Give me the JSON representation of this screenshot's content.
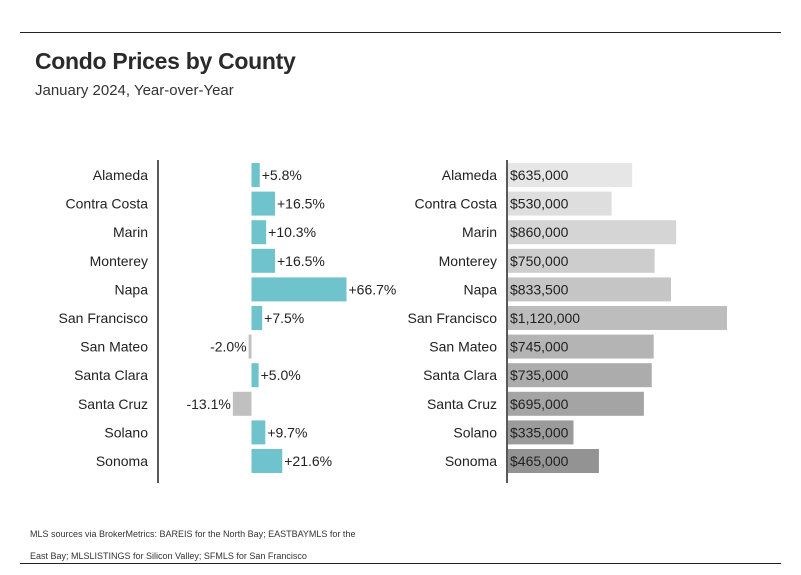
{
  "header": {
    "title": "Condo Prices by County",
    "subtitle": "January 2024, Year-over-Year"
  },
  "footnote": "MLS sources via BrokerMetrics: BAREIS for the North Bay; EASTBAYMLS for the East Bay; MLSLISTINGS for Silicon Valley; SFMLS for San Francisco",
  "colors": {
    "positive_change": "#6fc3cd",
    "negative_change": "#c0c0c0",
    "price_light": "#e6e6e6",
    "price_dark": "#939393",
    "axis": "#222222"
  },
  "chart_data": [
    {
      "type": "bar",
      "orientation": "horizontal",
      "categories": [
        "Alameda",
        "Contra Costa",
        "Marin",
        "Monterey",
        "Napa",
        "San Francisco",
        "San Mateo",
        "Santa Clara",
        "Santa Cruz",
        "Solano",
        "Sonoma"
      ],
      "values": [
        5.8,
        16.5,
        10.3,
        16.5,
        66.7,
        7.5,
        -2.0,
        5.0,
        -13.1,
        9.7,
        21.6
      ],
      "data_labels": [
        "+5.8%",
        "+16.5%",
        "+10.3%",
        "+16.5%",
        "+66.7%",
        "+7.5%",
        "-2.0%",
        "+5.0%",
        "-13.1%",
        "+9.7%",
        "+21.6%"
      ],
      "xlim": [
        -70,
        70
      ],
      "grid": false
    },
    {
      "type": "bar",
      "orientation": "horizontal",
      "categories": [
        "Alameda",
        "Contra Costa",
        "Marin",
        "Monterey",
        "Napa",
        "San Francisco",
        "San Mateo",
        "Santa Clara",
        "Santa Cruz",
        "Solano",
        "Sonoma"
      ],
      "values": [
        635000,
        530000,
        860000,
        750000,
        833500,
        1120000,
        745000,
        735000,
        695000,
        335000,
        465000
      ],
      "data_labels": [
        "$635,000",
        "$530,000",
        "$860,000",
        "$750,000",
        "$833,500",
        "$1,120,000",
        "$745,000",
        "$735,000",
        "$695,000",
        "$335,000",
        "$465,000"
      ],
      "xlim": [
        0,
        1120000
      ],
      "grid": false
    }
  ]
}
